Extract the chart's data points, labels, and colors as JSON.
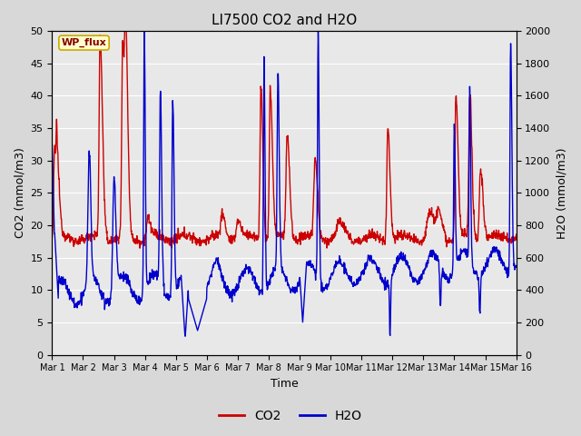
{
  "title": "LI7500 CO2 and H2O",
  "ylabel_left": "CO2 (mmol/m3)",
  "ylabel_right": "H2O (mmol/m3)",
  "xlabel": "Time",
  "ylim_left": [
    0,
    50
  ],
  "ylim_right": [
    0,
    2000
  ],
  "yticks_left": [
    0,
    5,
    10,
    15,
    20,
    25,
    30,
    35,
    40,
    45,
    50
  ],
  "yticks_right": [
    0,
    200,
    400,
    600,
    800,
    1000,
    1200,
    1400,
    1600,
    1800,
    2000
  ],
  "xtick_labels": [
    "Mar 1",
    "Mar 2",
    "Mar 3",
    "Mar 4",
    "Mar 5",
    "Mar 6",
    "Mar 7",
    "Mar 8",
    "Mar 9",
    "Mar 10",
    "Mar 11",
    "Mar 12",
    "Mar 13",
    "Mar 14",
    "Mar 15",
    "Mar 16"
  ],
  "co2_color": "#cc0000",
  "h2o_color": "#0000cc",
  "fig_bg_color": "#d8d8d8",
  "plot_bg_color": "#e8e8e8",
  "grid_color": "#ffffff",
  "annotation_text": "WP_flux",
  "annotation_facecolor": "#ffffcc",
  "annotation_edgecolor": "#ccaa00",
  "annotation_textcolor": "#880000",
  "legend_co2": "CO2",
  "legend_h2o": "H2O",
  "linewidth": 1.0
}
